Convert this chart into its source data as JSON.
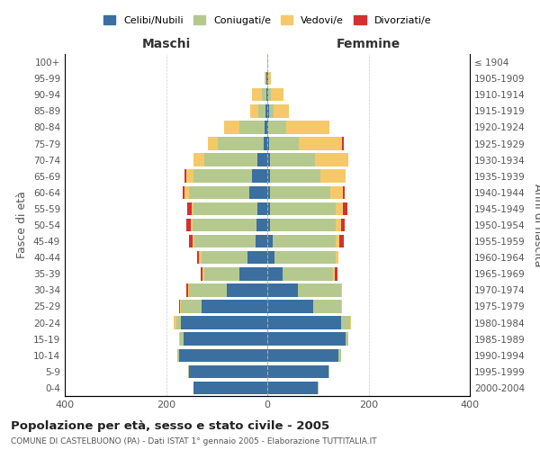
{
  "age_groups": [
    "0-4",
    "5-9",
    "10-14",
    "15-19",
    "20-24",
    "25-29",
    "30-34",
    "35-39",
    "40-44",
    "45-49",
    "50-54",
    "55-59",
    "60-64",
    "65-69",
    "70-74",
    "75-79",
    "80-84",
    "85-89",
    "90-94",
    "95-99",
    "100+"
  ],
  "birth_years": [
    "2000-2004",
    "1995-1999",
    "1990-1994",
    "1985-1989",
    "1980-1984",
    "1975-1979",
    "1970-1974",
    "1965-1969",
    "1960-1964",
    "1955-1959",
    "1950-1954",
    "1945-1949",
    "1940-1944",
    "1935-1939",
    "1930-1934",
    "1925-1929",
    "1920-1924",
    "1915-1919",
    "1910-1914",
    "1905-1909",
    "≤ 1904"
  ],
  "colors": {
    "celibi": "#3a6fa0",
    "coniugati": "#b5c98e",
    "vedovi": "#f5c96a",
    "divorziati": "#d43030"
  },
  "maschi": {
    "celibi": [
      145,
      155,
      175,
      165,
      170,
      130,
      80,
      55,
      40,
      24,
      22,
      20,
      35,
      30,
      20,
      8,
      5,
      3,
      2,
      1,
      0
    ],
    "coniugati": [
      1,
      2,
      3,
      8,
      10,
      40,
      75,
      70,
      90,
      120,
      125,
      125,
      120,
      115,
      105,
      90,
      50,
      15,
      8,
      2,
      0
    ],
    "vedovi": [
      0,
      0,
      0,
      1,
      5,
      2,
      2,
      3,
      5,
      3,
      5,
      5,
      8,
      15,
      20,
      20,
      30,
      15,
      20,
      2,
      0
    ],
    "divorziati": [
      0,
      0,
      0,
      0,
      0,
      2,
      3,
      3,
      3,
      8,
      8,
      8,
      5,
      3,
      0,
      0,
      0,
      0,
      0,
      0,
      0
    ]
  },
  "femmine": {
    "celibi": [
      100,
      120,
      140,
      155,
      145,
      90,
      60,
      30,
      15,
      10,
      5,
      5,
      5,
      5,
      5,
      3,
      2,
      3,
      2,
      1,
      0
    ],
    "coniugati": [
      1,
      2,
      5,
      5,
      18,
      55,
      85,
      100,
      120,
      125,
      130,
      130,
      120,
      100,
      90,
      60,
      35,
      10,
      5,
      1,
      0
    ],
    "vedovi": [
      0,
      0,
      0,
      0,
      2,
      2,
      2,
      3,
      5,
      8,
      10,
      15,
      25,
      50,
      65,
      85,
      85,
      30,
      25,
      5,
      1
    ],
    "divorziati": [
      0,
      0,
      0,
      0,
      0,
      0,
      0,
      5,
      0,
      8,
      8,
      8,
      3,
      0,
      0,
      3,
      0,
      0,
      0,
      0,
      0
    ]
  },
  "title": "Popolazione per età, sesso e stato civile - 2005",
  "subtitle": "COMUNE DI CASTELBUONO (PA) - Dati ISTAT 1° gennaio 2005 - Elaborazione TUTTITALIA.IT",
  "ylabel_left": "Fasce di età",
  "ylabel_right": "Anni di nascita",
  "xlabel_left": "Maschi",
  "xlabel_right": "Femmine",
  "xlim": 400,
  "legend_labels": [
    "Celibi/Nubili",
    "Coniugati/e",
    "Vedovi/e",
    "Divorziati/e"
  ],
  "bg_color": "#ffffff",
  "grid_color": "#cccccc"
}
